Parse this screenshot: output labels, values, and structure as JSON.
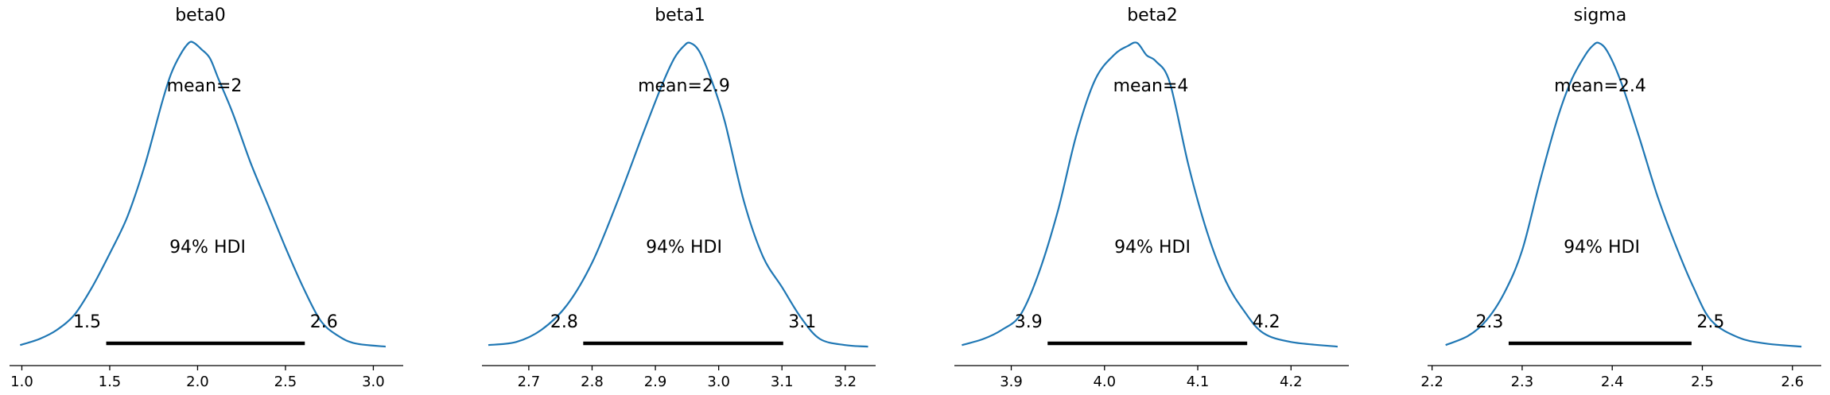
{
  "figure": {
    "colors": {
      "density": "#1f77b4",
      "hdi": "#000000",
      "axis": "#000000",
      "background": "#ffffff"
    }
  },
  "chart_data": [
    {
      "type": "area",
      "title": "beta0",
      "xlim": [
        0.93,
        3.17
      ],
      "xticks": [
        1.0,
        1.5,
        2.0,
        2.5,
        3.0
      ],
      "xtick_labels": [
        "1.0",
        "1.5",
        "2.0",
        "2.5",
        "3.0"
      ],
      "mean_label": "mean=2",
      "hdi_text": "94% HDI",
      "hdi": [
        1.48,
        2.61
      ],
      "hdi_labels": [
        "1.5",
        "2.6"
      ],
      "density": {
        "x": [
          0.99,
          1.1,
          1.2,
          1.3,
          1.4,
          1.5,
          1.6,
          1.7,
          1.8,
          1.85,
          1.9,
          1.95,
          1.98,
          2.02,
          2.07,
          2.12,
          2.2,
          2.3,
          2.4,
          2.5,
          2.6,
          2.7,
          2.8,
          2.9,
          3.07
        ],
        "y": [
          0.01,
          0.03,
          0.06,
          0.11,
          0.2,
          0.31,
          0.43,
          0.6,
          0.81,
          0.9,
          0.96,
          1.0,
          1.0,
          0.98,
          0.95,
          0.88,
          0.77,
          0.61,
          0.47,
          0.33,
          0.2,
          0.09,
          0.04,
          0.015,
          0.005
        ]
      }
    },
    {
      "type": "area",
      "title": "beta1",
      "xlim": [
        2.626,
        3.248
      ],
      "xticks": [
        2.7,
        2.8,
        2.9,
        3.0,
        3.1,
        3.2
      ],
      "xtick_labels": [
        "2.7",
        "2.8",
        "2.9",
        "3.0",
        "3.1",
        "3.2"
      ],
      "mean_label": "mean=2.9",
      "hdi_text": "94% HDI",
      "hdi": [
        2.786,
        3.102
      ],
      "hdi_labels": [
        "2.8",
        "3.1"
      ],
      "density": {
        "x": [
          2.636,
          2.68,
          2.72,
          2.76,
          2.8,
          2.84,
          2.88,
          2.91,
          2.93,
          2.945,
          2.955,
          2.97,
          2.99,
          3.01,
          3.04,
          3.07,
          3.1,
          3.13,
          3.16,
          3.2,
          3.236
        ],
        "y": [
          0.01,
          0.02,
          0.06,
          0.14,
          0.28,
          0.48,
          0.7,
          0.86,
          0.95,
          0.99,
          1.0,
          0.97,
          0.87,
          0.74,
          0.48,
          0.3,
          0.2,
          0.1,
          0.03,
          0.01,
          0.005
        ]
      }
    },
    {
      "type": "area",
      "title": "beta2",
      "xlim": [
        3.839,
        4.262
      ],
      "xticks": [
        3.9,
        4.0,
        4.1,
        4.2
      ],
      "xtick_labels": [
        "3.9",
        "4.0",
        "4.1",
        "4.2"
      ],
      "mean_label": "mean=4",
      "hdi_text": "94% HDI",
      "hdi": [
        3.939,
        4.153
      ],
      "hdi_labels": [
        "3.9",
        "4.2"
      ],
      "density": {
        "x": [
          3.847,
          3.87,
          3.89,
          3.91,
          3.93,
          3.95,
          3.97,
          3.99,
          4.01,
          4.025,
          4.035,
          4.045,
          4.055,
          4.07,
          4.09,
          4.11,
          4.13,
          4.15,
          4.17,
          4.2,
          4.25
        ],
        "y": [
          0.01,
          0.03,
          0.06,
          0.11,
          0.25,
          0.45,
          0.7,
          0.88,
          0.96,
          0.99,
          1.0,
          0.96,
          0.94,
          0.87,
          0.6,
          0.38,
          0.22,
          0.12,
          0.05,
          0.02,
          0.005
        ]
      }
    },
    {
      "type": "area",
      "title": "sigma",
      "xlim": [
        2.195,
        2.632
      ],
      "xticks": [
        2.2,
        2.3,
        2.4,
        2.5,
        2.6
      ],
      "xtick_labels": [
        "2.2",
        "2.3",
        "2.4",
        "2.5",
        "2.6"
      ],
      "mean_label": "mean=2.4",
      "hdi_text": "94% HDI",
      "hdi": [
        2.285,
        2.488
      ],
      "hdi_labels": [
        "2.3",
        "2.5"
      ],
      "density": {
        "x": [
          2.215,
          2.24,
          2.26,
          2.28,
          2.3,
          2.32,
          2.34,
          2.355,
          2.37,
          2.378,
          2.385,
          2.395,
          2.41,
          2.43,
          2.45,
          2.47,
          2.49,
          2.51,
          2.54,
          2.57,
          2.61
        ],
        "y": [
          0.01,
          0.04,
          0.09,
          0.18,
          0.32,
          0.55,
          0.76,
          0.88,
          0.96,
          0.99,
          1.0,
          0.97,
          0.87,
          0.69,
          0.5,
          0.34,
          0.2,
          0.09,
          0.035,
          0.015,
          0.005
        ]
      }
    }
  ]
}
